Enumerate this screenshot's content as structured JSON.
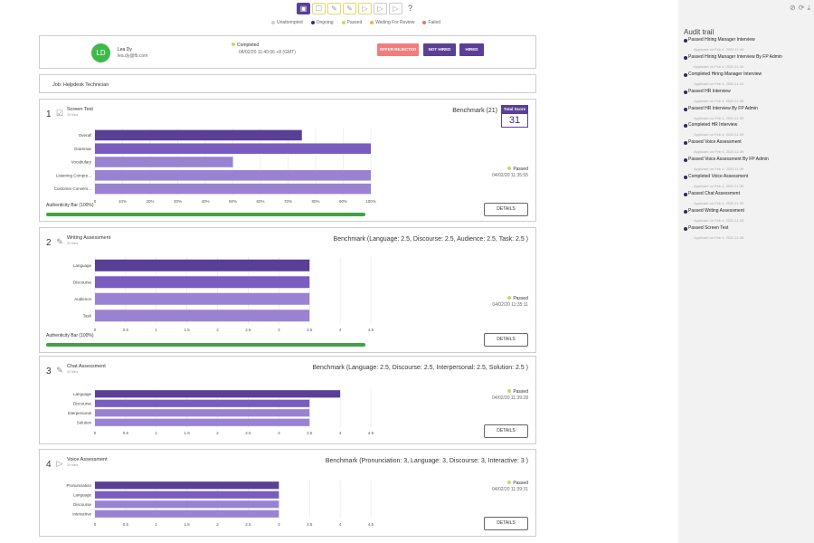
{
  "toolbar": {
    "icons": [
      "calendar-icon",
      "checkbox-icon",
      "pencil-icon",
      "pencil-icon",
      "play-icon",
      "play-icon",
      "play-icon",
      "help-icon"
    ]
  },
  "legend": [
    {
      "label": "Unattempted",
      "color": "#cfcfcf"
    },
    {
      "label": "Ongoing",
      "color": "#3f2a78"
    },
    {
      "label": "Passed",
      "color": "#c9d66a"
    },
    {
      "label": "Waiting For Review",
      "color": "#f0b54a"
    },
    {
      "label": "Failed",
      "color": "#e57373"
    }
  ],
  "candidate": {
    "initials": "LD",
    "name": "Lea Dy",
    "email": "lea.dy@fb.com",
    "status": "Completed",
    "status_date": "04/02/20 11:40:06 +8 (GMT)",
    "buttons": {
      "offer_rejected": "OFFER REJECTED",
      "not_hired": "NOT HIRED",
      "hired": "HIRED"
    }
  },
  "job": {
    "label": "Job: Helpdesk Technician"
  },
  "colors": {
    "dark": "#5a3f96",
    "medium": "#7a5cc0",
    "light": "#9a82d2",
    "passed": "#c9d66a",
    "auth": "#44a048",
    "reject": "#f07d7d"
  },
  "sections": [
    {
      "num": "1",
      "title": "Screen Test",
      "sub": "30 Mins",
      "icon": "checkbox-icon",
      "benchmark": "Benchmark (21)",
      "total_label": "Total Score",
      "total_value": "31",
      "status": "Passed",
      "date": "04/02/20 11:35:55",
      "details": "DETAILS",
      "auth_label": "Authenticity Bar (100%)",
      "auth_value": 100
    },
    {
      "num": "2",
      "title": "Writing Assessment",
      "sub": "30 Mins",
      "icon": "pencil-icon",
      "benchmark": "Benchmark (Language: 2.5, Discourse: 2.5, Audience: 2.5, Task: 2.5 )",
      "status": "Passed",
      "date": "04/02/20 11:35:11",
      "details": "DETAILS",
      "auth_label": "Authenticity Bar (100%)",
      "auth_value": 100
    },
    {
      "num": "3",
      "title": "Chat Assessment",
      "sub": "30 Mins",
      "icon": "pencil-icon",
      "benchmark": "Benchmark (Language: 2.5, Discourse: 2.5, Interpersonal: 2.5, Solution: 2.5 )",
      "status": "Passed",
      "date": "04/02/20 11:39:28",
      "details": "DETAILS"
    },
    {
      "num": "4",
      "title": "Voice Assessment",
      "sub": "30 Mins",
      "icon": "play-icon",
      "benchmark": "Benchmark (Pronunciation: 3, Language: 3, Discourse: 3, Interactive: 3 )",
      "status": "Passed",
      "date": "04/02/20 11:39:31",
      "details": "DETAILS"
    }
  ],
  "chart_data": [
    {
      "type": "bar",
      "orientation": "horizontal",
      "categories": [
        "Overall",
        "Grammar",
        "Vocabulary",
        "Listening Compre...",
        "Customer Convers..."
      ],
      "values": [
        75,
        100,
        50,
        100,
        100
      ],
      "ticks": [
        "0",
        "10%",
        "20%",
        "30%",
        "40%",
        "50%",
        "60%",
        "70%",
        "80%",
        "90%",
        "100%"
      ],
      "xlim": [
        0,
        100
      ]
    },
    {
      "type": "bar",
      "orientation": "horizontal",
      "categories": [
        "Language",
        "Discourse",
        "Audience",
        "Task"
      ],
      "values": [
        3.5,
        3.5,
        3.5,
        3.5
      ],
      "ticks": [
        "0",
        "0.5",
        "1",
        "1.5",
        "2",
        "2.5",
        "3",
        "3.5",
        "4",
        "4.5"
      ],
      "xlim": [
        0,
        4.5
      ]
    },
    {
      "type": "bar",
      "orientation": "horizontal",
      "categories": [
        "Language",
        "Discourse",
        "Interpersonal",
        "Solution"
      ],
      "values": [
        4,
        3.5,
        3.5,
        3.5
      ],
      "ticks": [
        "0",
        "0.5",
        "1",
        "1.5",
        "2",
        "2.5",
        "3",
        "3.5",
        "4",
        "4.5"
      ],
      "xlim": [
        0,
        4.5
      ]
    },
    {
      "type": "bar",
      "orientation": "horizontal",
      "categories": [
        "Pronunciation",
        "Language",
        "Discourse",
        "Interactive"
      ],
      "values": [
        3,
        3,
        3,
        3
      ],
      "ticks": [
        "0",
        "0.5",
        "1",
        "1.5",
        "2",
        "2.5",
        "3",
        "3.5",
        "4",
        "4.5"
      ],
      "xlim": [
        0,
        4.5
      ]
    }
  ],
  "audit": {
    "title": "Audit trail",
    "items": [
      {
        "text": "Passed Hiring Manager Interview",
        "when": "Applicant on Feb 4, 2020,11:40"
      },
      {
        "text": "Passed Hiring Manager Interview By FP Admin",
        "when": "Applicant on Feb 4, 2020,11:40"
      },
      {
        "text": "Completed Hiring Manager Interview",
        "when": "Applicant on Feb 4, 2020,11:40"
      },
      {
        "text": "Passed HR Interview",
        "when": "Applicant on Feb 4, 2020,11:39"
      },
      {
        "text": "Passed HR Interview By FP Admin",
        "when": "Applicant on Feb 4, 2020,11:39"
      },
      {
        "text": "Completed HR Interview",
        "when": "Applicant on Feb 4, 2020,11:39"
      },
      {
        "text": "Passed Voice Assessment",
        "when": "Applicant on Feb 4, 2020,11:39"
      },
      {
        "text": "Passed Voice Assessment By FP Admin",
        "when": "Applicant on Feb 4, 2020,11:39"
      },
      {
        "text": "Completed Voice Assessment",
        "when": "Applicant on Feb 4, 2020,11:39"
      },
      {
        "text": "Passed Chat Assessment",
        "when": "Applicant on Feb 4, 2020,11:39"
      },
      {
        "text": "Passed Writing Assessment",
        "when": "Applicant on Feb 4, 2020,11:39"
      },
      {
        "text": "Passed Screen Test",
        "when": "Applicant on Feb 4, 2020,11:38"
      }
    ]
  }
}
